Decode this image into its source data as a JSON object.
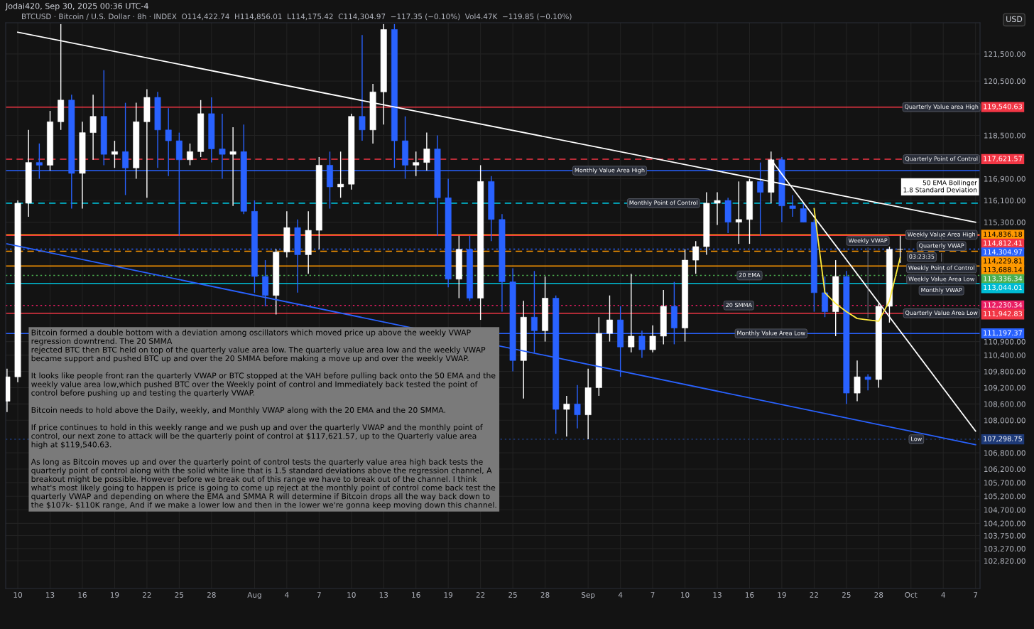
{
  "chart_data": {
    "type": "candlestick",
    "title": "BTCUSD · Bitcoin / U.S. Dollar · 8h · INDEX  O114,422.74  H114,856.01  L114,175.42  C114,304.97  −117.35 (−0.10%)  Vol4.47K  −119.85 (−0.10%)",
    "subtitle": "Jodai420, Sep 30, 2025 00:36 UTC-4",
    "ylabel": "USD",
    "x": [
      "2025-07-09",
      "2025-07-10",
      "2025-07-11",
      "2025-07-12",
      "2025-07-13",
      "2025-07-14",
      "2025-07-15",
      "2025-07-16",
      "2025-07-17",
      "2025-07-18",
      "2025-07-19",
      "2025-07-20",
      "2025-07-21",
      "2025-07-22",
      "2025-07-23",
      "2025-07-24",
      "2025-07-25",
      "2025-07-26",
      "2025-07-27",
      "2025-07-28",
      "2025-07-29",
      "2025-07-30",
      "2025-07-31",
      "2025-08-01",
      "2025-08-02",
      "2025-08-03",
      "2025-08-04",
      "2025-08-05",
      "2025-08-06",
      "2025-08-07",
      "2025-08-08",
      "2025-08-09",
      "2025-08-10",
      "2025-08-11",
      "2025-08-12",
      "2025-08-13",
      "2025-08-14",
      "2025-08-15",
      "2025-08-16",
      "2025-08-17",
      "2025-08-18",
      "2025-08-19",
      "2025-08-20",
      "2025-08-21",
      "2025-08-22",
      "2025-08-23",
      "2025-08-24",
      "2025-08-25",
      "2025-08-26",
      "2025-08-27",
      "2025-08-28",
      "2025-08-29",
      "2025-08-30",
      "2025-08-31",
      "2025-09-01",
      "2025-09-02",
      "2025-09-03",
      "2025-09-04",
      "2025-09-05",
      "2025-09-06",
      "2025-09-07",
      "2025-09-08",
      "2025-09-09",
      "2025-09-10",
      "2025-09-11",
      "2025-09-12",
      "2025-09-13",
      "2025-09-14",
      "2025-09-15",
      "2025-09-16",
      "2025-09-17",
      "2025-09-18",
      "2025-09-19",
      "2025-09-20",
      "2025-09-21",
      "2025-09-22",
      "2025-09-23",
      "2025-09-24",
      "2025-09-25",
      "2025-09-26",
      "2025-09-27",
      "2025-09-28",
      "2025-09-29",
      "2025-09-30"
    ],
    "ohlc": [
      [
        108700,
        109900,
        108300,
        109600
      ],
      [
        109600,
        116100,
        109400,
        116000
      ],
      [
        116000,
        118700,
        115500,
        117500
      ],
      [
        117500,
        118200,
        116900,
        117400
      ],
      [
        117400,
        119400,
        117200,
        119000
      ],
      [
        119000,
        122600,
        118700,
        119800
      ],
      [
        119800,
        120000,
        115800,
        117100
      ],
      [
        117100,
        119000,
        115800,
        118600
      ],
      [
        118600,
        120000,
        117600,
        119200
      ],
      [
        119200,
        120900,
        117400,
        117800
      ],
      [
        117800,
        118300,
        117300,
        117900
      ],
      [
        117900,
        119700,
        116300,
        117300
      ],
      [
        117300,
        119700,
        116900,
        119000
      ],
      [
        119000,
        120200,
        116200,
        119900
      ],
      [
        119900,
        120100,
        117300,
        118700
      ],
      [
        118700,
        119500,
        117000,
        118300
      ],
      [
        118300,
        118600,
        114800,
        117600
      ],
      [
        117600,
        118200,
        117400,
        117900
      ],
      [
        117900,
        119800,
        117700,
        119300
      ],
      [
        119300,
        119900,
        117500,
        118000
      ],
      [
        118000,
        119300,
        116900,
        117800
      ],
      [
        117800,
        118800,
        115900,
        117900
      ],
      [
        117900,
        118900,
        115600,
        115700
      ],
      [
        115700,
        116100,
        112700,
        113300
      ],
      [
        113300,
        113900,
        112200,
        112600
      ],
      [
        112600,
        114300,
        111900,
        114200
      ],
      [
        114200,
        115700,
        114000,
        115100
      ],
      [
        115100,
        115400,
        112700,
        114100
      ],
      [
        114100,
        115700,
        113400,
        115000
      ],
      [
        115000,
        117700,
        114300,
        117400
      ],
      [
        117400,
        117900,
        115800,
        116600
      ],
      [
        116600,
        117900,
        116200,
        116700
      ],
      [
        116700,
        119300,
        116500,
        119200
      ],
      [
        119200,
        122200,
        118300,
        118700
      ],
      [
        118700,
        120400,
        118200,
        120100
      ],
      [
        120100,
        122600,
        118900,
        122400
      ],
      [
        122400,
        122600,
        117300,
        118300
      ],
      [
        118300,
        119200,
        116900,
        117400
      ],
      [
        117400,
        117900,
        117000,
        117500
      ],
      [
        117500,
        118600,
        117200,
        118000
      ],
      [
        118000,
        118500,
        114800,
        116200
      ],
      [
        116200,
        116900,
        112900,
        113200
      ],
      [
        113200,
        114800,
        112500,
        114300
      ],
      [
        114300,
        114800,
        112400,
        112500
      ],
      [
        112500,
        117400,
        111700,
        116800
      ],
      [
        116800,
        117000,
        114600,
        115400
      ],
      [
        115400,
        115600,
        112000,
        113100
      ],
      [
        113100,
        113600,
        109800,
        110200
      ],
      [
        110200,
        112400,
        108800,
        111800
      ],
      [
        111800,
        113500,
        110500,
        111300
      ],
      [
        111300,
        113300,
        110900,
        112500
      ],
      [
        112500,
        112600,
        107500,
        108400
      ],
      [
        108400,
        108900,
        107400,
        108600
      ],
      [
        108600,
        109300,
        107700,
        108200
      ],
      [
        108200,
        109900,
        107298.75,
        109200
      ],
      [
        109200,
        111800,
        108900,
        111200
      ],
      [
        111200,
        112600,
        110900,
        111700
      ],
      [
        111700,
        112200,
        109600,
        110700
      ],
      [
        110700,
        113400,
        110500,
        111100
      ],
      [
        111100,
        111300,
        110300,
        110600
      ],
      [
        110600,
        111500,
        110500,
        111100
      ],
      [
        111100,
        112800,
        110800,
        112200
      ],
      [
        112200,
        113100,
        110800,
        111400
      ],
      [
        111400,
        114300,
        110900,
        113900
      ],
      [
        113900,
        114600,
        113400,
        114400
      ],
      [
        114400,
        116400,
        114100,
        116000
      ],
      [
        116000,
        116400,
        115200,
        116100
      ],
      [
        116100,
        116200,
        114900,
        115300
      ],
      [
        115300,
        116800,
        114500,
        115400
      ],
      [
        115400,
        116900,
        114500,
        116800
      ],
      [
        116800,
        117500,
        114800,
        116400
      ],
      [
        116400,
        117900,
        116000,
        117600
      ],
      [
        117600,
        117700,
        115300,
        115900
      ],
      [
        115900,
        116300,
        115500,
        115800
      ],
      [
        115800,
        116000,
        115300,
        115300
      ],
      [
        115300,
        115400,
        112000,
        112700
      ],
      [
        112700,
        113300,
        111800,
        112000
      ],
      [
        112000,
        113900,
        111100,
        113300
      ],
      [
        113300,
        113500,
        108600,
        109000
      ],
      [
        109000,
        110200,
        108700,
        109600
      ],
      [
        109600,
        109700,
        109100,
        109500
      ],
      [
        109500,
        112300,
        109200,
        112200
      ],
      [
        112200,
        114400,
        111600,
        114300
      ],
      [
        114300,
        114800,
        113800,
        114304.97
      ]
    ],
    "colors": [
      "#ffffff",
      "#ffffff",
      "#ffffff",
      "#2962ff",
      "#ffffff",
      "#ffffff",
      "#2962ff",
      "#ffffff",
      "#ffffff",
      "#2962ff",
      "#ffffff",
      "#2962ff",
      "#ffffff",
      "#ffffff",
      "#2962ff",
      "#2962ff",
      "#2962ff",
      "#ffffff",
      "#ffffff",
      "#2962ff",
      "#2962ff",
      "#ffffff",
      "#2962ff",
      "#2962ff",
      "#2962ff",
      "#ffffff",
      "#ffffff",
      "#2962ff",
      "#ffffff",
      "#ffffff",
      "#2962ff",
      "#ffffff",
      "#ffffff",
      "#2962ff",
      "#ffffff",
      "#ffffff",
      "#2962ff",
      "#2962ff",
      "#ffffff",
      "#ffffff",
      "#2962ff",
      "#2962ff",
      "#ffffff",
      "#2962ff",
      "#ffffff",
      "#2962ff",
      "#2962ff",
      "#2962ff",
      "#ffffff",
      "#2962ff",
      "#ffffff",
      "#2962ff",
      "#ffffff",
      "#2962ff",
      "#ffffff",
      "#ffffff",
      "#ffffff",
      "#2962ff",
      "#ffffff",
      "#2962ff",
      "#ffffff",
      "#ffffff",
      "#2962ff",
      "#ffffff",
      "#ffffff",
      "#ffffff",
      "#ffffff",
      "#2962ff",
      "#ffffff",
      "#ffffff",
      "#2962ff",
      "#ffffff",
      "#2962ff",
      "#2962ff",
      "#2962ff",
      "#2962ff",
      "#2962ff",
      "#ffffff",
      "#2962ff",
      "#ffffff",
      "#2962ff",
      "#ffffff",
      "#ffffff",
      "#ffffff"
    ],
    "series": [
      {
        "type": "line",
        "color": "#ffffff",
        "x": [
          "2025-07-10",
          "2025-10-07"
        ],
        "values": [
          122300,
          115300
        ]
      },
      {
        "type": "line",
        "color": "#2962ff",
        "x": [
          "2025-07-09",
          "2025-10-07"
        ],
        "values": [
          114500,
          107100
        ]
      },
      {
        "type": "line",
        "color": "#ffffff",
        "x": [
          "2025-09-18",
          "2025-10-07"
        ],
        "values": [
          117600,
          107600
        ]
      },
      {
        "type": "line",
        "color": "#ffeb3b",
        "x": [
          "2025-09-22",
          "2025-09-23",
          "2025-09-24",
          "2025-09-25",
          "2025-09-26",
          "2025-09-27",
          "2025-09-28",
          "2025-09-29",
          "2025-09-30"
        ],
        "values": [
          115800,
          112700,
          112300,
          112000,
          111750,
          111700,
          111650,
          112400,
          114000
        ]
      }
    ],
    "ref_lines": [
      {
        "axis": "y",
        "value": 119540.63,
        "label": "119,540.63",
        "color": "#f23645",
        "line_style": "solid"
      },
      {
        "axis": "y",
        "value": 117621.57,
        "label": "117,621.57",
        "color": "#f23645",
        "line_style": "dashed"
      },
      {
        "axis": "y",
        "value": 117200,
        "color": "#2962ff",
        "line_style": "solid"
      },
      {
        "axis": "y",
        "value": 116000,
        "color": "#00bcd4",
        "line_style": "dashed"
      },
      {
        "axis": "y",
        "value": 114836.18,
        "label": "114,836.18",
        "color": "#ff9800",
        "line_style": "solid"
      },
      {
        "axis": "y",
        "value": 114812.41,
        "label": "114,812.41",
        "color": "#f23645",
        "line_style": "solid"
      },
      {
        "axis": "y",
        "value": 114304.97,
        "label": "114,304.97",
        "color": "#2962ff",
        "line_style": "dotted"
      },
      {
        "axis": "y",
        "value": 114229.81,
        "label": "114,229.81",
        "color": "#ff9800",
        "line_style": "dashed"
      },
      {
        "axis": "y",
        "value": 113688.14,
        "label": "113,688.14",
        "color": "#ff9800",
        "line_style": "solid"
      },
      {
        "axis": "y",
        "value": 113336.34,
        "label": "113,336.34",
        "color": "#4caf50",
        "line_style": "dotted"
      },
      {
        "axis": "y",
        "value": 113044.01,
        "label": "113,044.01",
        "color": "#00bcd4",
        "line_style": "solid"
      },
      {
        "axis": "y",
        "value": 112230.34,
        "label": "112,230.34",
        "color": "#e91e63",
        "line_style": "dotted"
      },
      {
        "axis": "y",
        "value": 111942.83,
        "label": "111,942.83",
        "color": "#f23645",
        "line_style": "solid"
      },
      {
        "axis": "y",
        "value": 111197.37,
        "label": "111,197.37",
        "color": "#2962ff",
        "line_style": "solid"
      },
      {
        "axis": "y",
        "value": 107298.75,
        "label": "107,298.75",
        "color": "#1e3a78",
        "line_style": "dotted"
      }
    ],
    "annotations": [
      "Bitcoin formed a double bottom with a deviation among oscillators which moved price up above the weekly VWAP\nregression downtrend. The 20 SMMA\nrejected BTC then BTC held on top of the quarterly value area low. The quarterly value area low and the weekly VWAP\nbecame support and pushed BTC up and over the 20 SMMA before making a move up and over the weekly VWAP.\n\nIt looks like people front ran the quarterly VWAP or BTC stopped at the VAH before pulling back onto the 50 EMA and the\nweekly value area low,which pushed BTC over the Weekly point of control and Immediately back tested the point of\ncontrol before pushing up and testing the quarterly VWAP.\n\nBitcoin needs to hold above the Daily, weekly, and Monthly VWAP along with the 20 EMA and the 20 SMMA.\n\nIf price continues to hold in this weekly range and we push up and over the quarterly VWAP and the monthly point of\ncontrol, our next zone to attack will be the quarterly point of control at $117,621.57, up to the Quarterly value area\nhigh at $119,540.63.\n\nAs long as Bitcoin moves up and over the quarterly point of control tests the quarterly value area high back tests the\nquarterly point of control along with the solid white line that is 1.5 standard deviations above the regression channel, A\nbreakout might be possible. However before we break out of this range we have to break out of the channel. I think\nwhat's most likely going to happen is price is going to come up reject at the monthly point of control come back test the\nquarterly VWAP and depending on where the EMA and SMMA R will determine if Bitcoin drops all the way back down to\nthe $107k- $110K range, And if we make a lower low and then in the lower we're gonna keep moving down this channel.",
      "50 EMA Bollinger\n1.8 Standard Deviation",
      {
        "text": "Quarterly Value area High",
        "x": "2025-10-03T20:00",
        "y": 119540.63
      },
      {
        "text": "Quarterly Point of Control",
        "x": "2025-10-03T20:00",
        "y": 117621.57
      },
      {
        "text": "Weekly Value Area High",
        "x": "2025-10-03T20:00",
        "y": 114836.18
      },
      {
        "text": "Quarterly VWAP",
        "x": "2025-10-03T20:00",
        "y": 114812.41
      },
      {
        "text": "03:23:35",
        "x": "2025-10-02",
        "y": 114304.97
      },
      {
        "text": "Weekly Point of Control",
        "x": "2025-10-03T20:00",
        "y": 114229.81
      },
      {
        "text": "Weekly Value Area Low",
        "x": "2025-10-03T20:00",
        "y": 113688.14
      },
      {
        "text": "Monthly VWAP",
        "x": "2025-10-03T20:00",
        "y": 113044.01
      },
      {
        "text": "Quarterly Value Area Low",
        "x": "2025-10-03T20:00",
        "y": 111942.83
      },
      {
        "text": "Low",
        "x": "2025-10-01T12:00",
        "y": 107298.75
      },
      {
        "text": "Monthly Value Area High",
        "x": "2025-09-03",
        "y": 117200
      },
      {
        "text": "Monthly Point of Control",
        "x": "2025-09-08",
        "y": 116000
      },
      {
        "text": "20 EMA",
        "x": "2025-09-16",
        "y": 113336.34
      },
      {
        "text": "20 SMMA",
        "x": "2025-09-15",
        "y": 112230.34
      },
      {
        "text": "Monthly Value Area Low",
        "x": "2025-09-18",
        "y": 111197.37
      },
      {
        "text": "Weekly VWAP",
        "x": "2025-09-27",
        "y": 111700
      }
    ],
    "xlim": [
      "2025-07-08T21:00",
      "2025-10-07T10:00"
    ],
    "xticks": [
      {
        "value": "2025-07-10",
        "label": "10"
      },
      {
        "value": "2025-07-13",
        "label": "13"
      },
      {
        "value": "2025-07-16",
        "label": "16"
      },
      {
        "value": "2025-07-19",
        "label": "19"
      },
      {
        "value": "2025-07-22",
        "label": "22"
      },
      {
        "value": "2025-07-25",
        "label": "25"
      },
      {
        "value": "2025-07-28",
        "label": "28"
      },
      {
        "value": "2025-08-01",
        "label": "Aug"
      },
      {
        "value": "2025-08-04",
        "label": "4"
      },
      {
        "value": "2025-08-07",
        "label": "7"
      },
      {
        "value": "2025-08-10",
        "label": "10"
      },
      {
        "value": "2025-08-13",
        "label": "13"
      },
      {
        "value": "2025-08-16",
        "label": "16"
      },
      {
        "value": "2025-08-19",
        "label": "19"
      },
      {
        "value": "2025-08-22",
        "label": "22"
      },
      {
        "value": "2025-08-25",
        "label": "25"
      },
      {
        "value": "2025-08-28",
        "label": "28"
      },
      {
        "value": "2025-09-01",
        "label": "Sep"
      },
      {
        "value": "2025-09-04",
        "label": "4"
      },
      {
        "value": "2025-09-07",
        "label": "7"
      },
      {
        "value": "2025-09-10",
        "label": "10"
      },
      {
        "value": "2025-09-13",
        "label": "13"
      },
      {
        "value": "2025-09-16",
        "label": "16"
      },
      {
        "value": "2025-09-19",
        "label": "19"
      },
      {
        "value": "2025-09-22",
        "label": "22"
      },
      {
        "value": "2025-09-25",
        "label": "25"
      },
      {
        "value": "2025-09-28",
        "label": "28"
      },
      {
        "value": "2025-10-01",
        "label": "Oct"
      },
      {
        "value": "2025-10-04",
        "label": "4"
      },
      {
        "value": "2025-10-07",
        "label": "7"
      }
    ],
    "ylim": [
      101800,
      122650
    ],
    "yticks": [
      {
        "value": 121500,
        "label": "121,500.00"
      },
      {
        "value": 120500,
        "label": "120,500.00"
      },
      {
        "value": 118500,
        "label": "118,500.00"
      },
      {
        "value": 116900,
        "label": "116,900.00"
      },
      {
        "value": 116100,
        "label": "116,100.00"
      },
      {
        "value": 115300,
        "label": "115,300.00"
      },
      {
        "value": 110900,
        "label": "110,900.00"
      },
      {
        "value": 110400,
        "label": "110,400.00"
      },
      {
        "value": 109800,
        "label": "109,800.00"
      },
      {
        "value": 109200,
        "label": "109,200.00"
      },
      {
        "value": 108600,
        "label": "108,600.00"
      },
      {
        "value": 108000,
        "label": "108,000.00"
      },
      {
        "value": 106800,
        "label": "106,800.00"
      },
      {
        "value": 106200,
        "label": "106,200.00"
      },
      {
        "value": 105700,
        "label": "105,700.00"
      },
      {
        "value": 105200,
        "label": "105,200.00"
      },
      {
        "value": 104700,
        "label": "104,700.00"
      },
      {
        "value": 104200,
        "label": "104,200.00"
      },
      {
        "value": 103750,
        "label": "103,750.00"
      },
      {
        "value": 103270,
        "label": "103,270.00"
      },
      {
        "value": 102820,
        "label": "102,820.00"
      }
    ],
    "grid": true
  }
}
